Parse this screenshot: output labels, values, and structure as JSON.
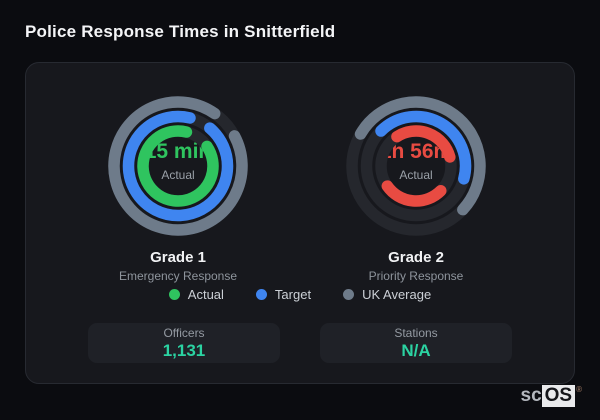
{
  "title": "Police Response Times in Snitterfield",
  "card": {
    "track_color": "#25272d",
    "stroke_width": 11.5,
    "gauges": [
      {
        "label": "Grade 1",
        "sublabel": "Emergency Response",
        "value": "15 min",
        "value_color": "#2fc45f",
        "caption": "Actual",
        "rings": [
          {
            "name": "uk-average",
            "color": "#6e7b8a",
            "radius": 64,
            "segments": [
              [
                62,
                333
              ]
            ]
          },
          {
            "name": "target",
            "color": "#3f85f0",
            "radius": 49.5,
            "segments": [
              [
                40,
                334
              ]
            ]
          },
          {
            "name": "actual",
            "color": "#2fc45f",
            "radius": 35,
            "segments": [
              [
                56,
                318
              ]
            ]
          }
        ]
      },
      {
        "label": "Grade 2",
        "sublabel": "Priority Response",
        "value": "1h 56m",
        "value_color": "#e84b42",
        "caption": "Actual",
        "rings": [
          {
            "name": "uk-average",
            "color": "#6e7b8a",
            "radius": 64,
            "segments": [
              [
                300,
                193
              ]
            ]
          },
          {
            "name": "target",
            "color": "#3f85f0",
            "radius": 49.5,
            "segments": [
              [
                315,
                150
              ]
            ]
          },
          {
            "name": "actual",
            "color": "#e84b42",
            "radius": 35,
            "segments": [
              [
                327,
                108
              ],
              [
                135,
                100
              ]
            ]
          }
        ]
      }
    ],
    "legend": [
      {
        "label": "Actual",
        "color": "#2fc45f"
      },
      {
        "label": "Target",
        "color": "#3f85f0"
      },
      {
        "label": "UK Average",
        "color": "#6e7b8a"
      }
    ],
    "stats": [
      {
        "label": "Officers",
        "value": "1,131"
      },
      {
        "label": "Stations",
        "value": "N/A"
      }
    ]
  },
  "logo": {
    "prefix": "sc",
    "suffix": "OS",
    "reg": "®"
  },
  "chart_data": {
    "type": "gauge",
    "charts": [
      {
        "title": "Grade 1",
        "subtitle": "Emergency Response",
        "center_value": "15 min",
        "center_caption": "Actual",
        "rings": [
          {
            "name": "Actual",
            "color": "#2fc45f",
            "approx_fill_pct": 88
          },
          {
            "name": "Target",
            "color": "#3f85f0",
            "approx_fill_pct": 93
          },
          {
            "name": "UK Average",
            "color": "#6e7b8a",
            "approx_fill_pct": 93
          }
        ]
      },
      {
        "title": "Grade 2",
        "subtitle": "Priority Response",
        "center_value": "1h 56m",
        "center_caption": "Actual",
        "rings": [
          {
            "name": "Actual",
            "color": "#e84b42",
            "approx_fill_pct": 58
          },
          {
            "name": "Target",
            "color": "#3f85f0",
            "approx_fill_pct": 42
          },
          {
            "name": "UK Average",
            "color": "#6e7b8a",
            "approx_fill_pct": 54
          }
        ]
      }
    ],
    "legend": [
      "Actual",
      "Target",
      "UK Average"
    ],
    "stats": {
      "Officers": "1,131",
      "Stations": "N/A"
    }
  }
}
